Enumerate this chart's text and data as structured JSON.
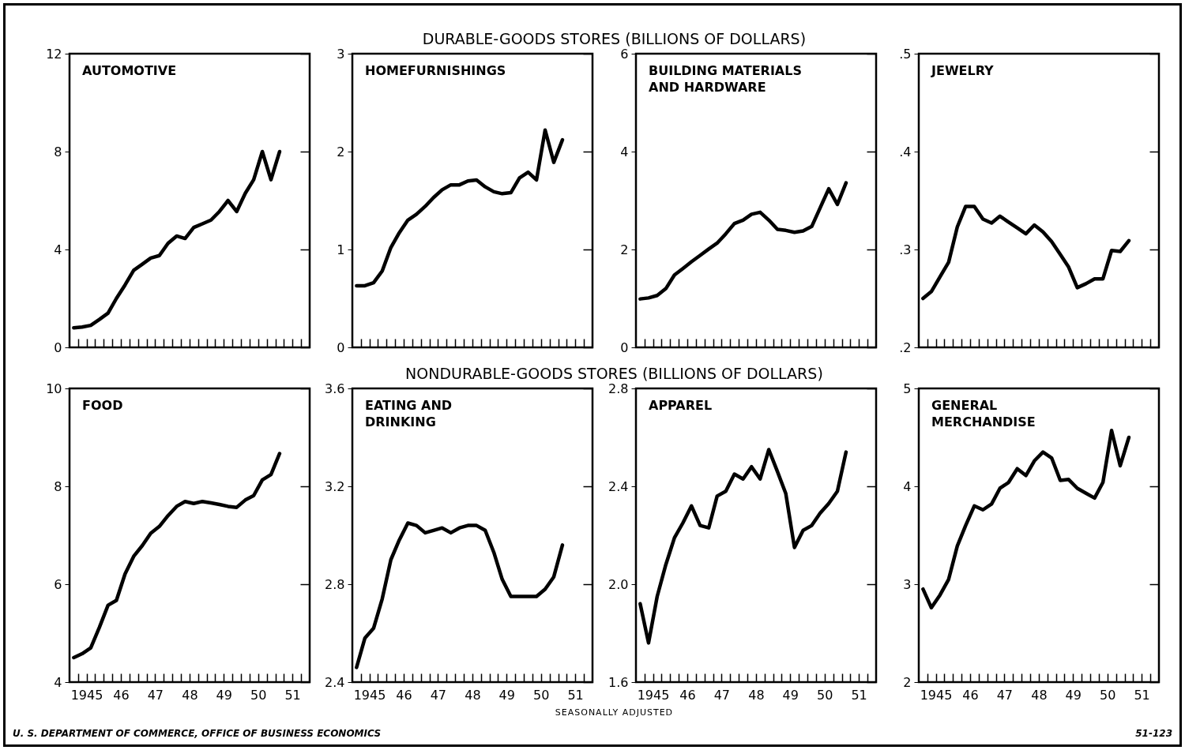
{
  "chart_data": [
    {
      "type": "line",
      "title": "AUTOMOTIVE",
      "annotations": [
        "DURABLE-GOODS STORES (BILLIONS OF DOLLARS)"
      ],
      "color": "#000000",
      "x": [
        "1945-02-15",
        "1945-05-15",
        "1945-08-15",
        "1945-11-15",
        "1946-02-15",
        "1946-05-15",
        "1946-08-15",
        "1946-11-15",
        "1947-02-15",
        "1947-05-15",
        "1947-08-15",
        "1947-11-15",
        "1948-02-15",
        "1948-05-15",
        "1948-08-15",
        "1948-11-15",
        "1949-02-15",
        "1949-05-15",
        "1949-08-15",
        "1949-11-15",
        "1950-02-15",
        "1950-05-15",
        "1950-08-15",
        "1950-11-15",
        "1951-02-15"
      ],
      "values": [
        0.8,
        0.83,
        0.9,
        1.14,
        1.4,
        2.0,
        2.55,
        3.15,
        3.4,
        3.65,
        3.75,
        4.25,
        4.55,
        4.45,
        4.9,
        5.05,
        5.2,
        5.55,
        6.0,
        5.55,
        6.3,
        6.85,
        8.0,
        6.85,
        8.0
      ],
      "xlim": [
        "1945-01-01",
        "1952-01-01"
      ],
      "xticks": [
        {
          "value": "1945-04-01",
          "label": null
        },
        {
          "value": "1945-07-01",
          "label": null
        },
        {
          "value": "1945-10-01",
          "label": null
        },
        {
          "value": "1946-01-01",
          "label": null
        },
        {
          "value": "1946-04-01",
          "label": null
        },
        {
          "value": "1946-07-01",
          "label": null
        },
        {
          "value": "1946-10-01",
          "label": null
        },
        {
          "value": "1947-01-01",
          "label": null
        },
        {
          "value": "1947-04-01",
          "label": null
        },
        {
          "value": "1947-07-01",
          "label": null
        },
        {
          "value": "1947-10-01",
          "label": null
        },
        {
          "value": "1948-01-01",
          "label": null
        },
        {
          "value": "1948-04-01",
          "label": null
        },
        {
          "value": "1948-07-01",
          "label": null
        },
        {
          "value": "1948-10-01",
          "label": null
        },
        {
          "value": "1949-01-01",
          "label": null
        },
        {
          "value": "1949-04-01",
          "label": null
        },
        {
          "value": "1949-07-01",
          "label": null
        },
        {
          "value": "1949-10-01",
          "label": null
        },
        {
          "value": "1950-01-01",
          "label": null
        },
        {
          "value": "1950-04-01",
          "label": null
        },
        {
          "value": "1950-07-01",
          "label": null
        },
        {
          "value": "1950-10-01",
          "label": null
        },
        {
          "value": "1951-01-01",
          "label": null
        },
        {
          "value": "1951-04-01",
          "label": null
        },
        {
          "value": "1951-07-01",
          "label": null
        },
        {
          "value": "1951-10-01",
          "label": null
        }
      ],
      "ylim": [
        0,
        12
      ],
      "yticks": [
        0,
        4,
        8,
        12
      ],
      "tick_labels": "y"
    },
    {
      "type": "line",
      "title": "HOMEFURNISHINGS",
      "color": "#000000",
      "x": [
        "1945-02-15",
        "1945-05-15",
        "1945-08-15",
        "1945-11-15",
        "1946-02-15",
        "1946-05-15",
        "1946-08-15",
        "1946-11-15",
        "1947-02-15",
        "1947-05-15",
        "1947-08-15",
        "1947-11-15",
        "1948-02-15",
        "1948-05-15",
        "1948-08-15",
        "1948-11-15",
        "1949-02-15",
        "1949-05-15",
        "1949-08-15",
        "1949-11-15",
        "1950-02-15",
        "1950-05-15",
        "1950-08-15",
        "1950-11-15",
        "1951-02-15"
      ],
      "values": [
        0.63,
        0.63,
        0.66,
        0.78,
        1.02,
        1.17,
        1.3,
        1.36,
        1.44,
        1.53,
        1.61,
        1.66,
        1.66,
        1.7,
        1.71,
        1.64,
        1.59,
        1.57,
        1.58,
        1.73,
        1.79,
        1.71,
        2.22,
        1.89,
        2.12
      ],
      "xlim": [
        "1945-01-01",
        "1952-01-01"
      ],
      "xticks": [
        {
          "value": "1945-04-01",
          "label": null
        },
        {
          "value": "1945-07-01",
          "label": null
        },
        {
          "value": "1945-10-01",
          "label": null
        },
        {
          "value": "1946-01-01",
          "label": null
        },
        {
          "value": "1946-04-01",
          "label": null
        },
        {
          "value": "1946-07-01",
          "label": null
        },
        {
          "value": "1946-10-01",
          "label": null
        },
        {
          "value": "1947-01-01",
          "label": null
        },
        {
          "value": "1947-04-01",
          "label": null
        },
        {
          "value": "1947-07-01",
          "label": null
        },
        {
          "value": "1947-10-01",
          "label": null
        },
        {
          "value": "1948-01-01",
          "label": null
        },
        {
          "value": "1948-04-01",
          "label": null
        },
        {
          "value": "1948-07-01",
          "label": null
        },
        {
          "value": "1948-10-01",
          "label": null
        },
        {
          "value": "1949-01-01",
          "label": null
        },
        {
          "value": "1949-04-01",
          "label": null
        },
        {
          "value": "1949-07-01",
          "label": null
        },
        {
          "value": "1949-10-01",
          "label": null
        },
        {
          "value": "1950-01-01",
          "label": null
        },
        {
          "value": "1950-04-01",
          "label": null
        },
        {
          "value": "1950-07-01",
          "label": null
        },
        {
          "value": "1950-10-01",
          "label": null
        },
        {
          "value": "1951-01-01",
          "label": null
        },
        {
          "value": "1951-04-01",
          "label": null
        },
        {
          "value": "1951-07-01",
          "label": null
        },
        {
          "value": "1951-10-01",
          "label": null
        }
      ],
      "ylim": [
        0,
        3
      ],
      "yticks": [
        0,
        1,
        2,
        3
      ],
      "tick_labels": "y"
    },
    {
      "type": "line",
      "title": "BUILDING MATERIALS\nAND HARDWARE",
      "color": "#000000",
      "x": [
        "1945-02-15",
        "1945-05-15",
        "1945-08-15",
        "1945-11-15",
        "1946-02-15",
        "1946-05-15",
        "1946-08-15",
        "1946-11-15",
        "1947-02-15",
        "1947-05-15",
        "1947-08-15",
        "1947-11-15",
        "1948-02-15",
        "1948-05-15",
        "1948-08-15",
        "1948-11-15",
        "1949-02-15",
        "1949-05-15",
        "1949-08-15",
        "1949-11-15",
        "1950-02-15",
        "1950-05-15",
        "1950-08-15",
        "1950-11-15",
        "1951-02-15"
      ],
      "values": [
        0.99,
        1.01,
        1.06,
        1.2,
        1.48,
        1.61,
        1.75,
        1.88,
        2.01,
        2.13,
        2.32,
        2.53,
        2.6,
        2.72,
        2.76,
        2.6,
        2.41,
        2.39,
        2.35,
        2.38,
        2.47,
        2.85,
        3.24,
        2.92,
        3.36
      ],
      "xlim": [
        "1945-01-01",
        "1952-01-01"
      ],
      "xticks": [
        {
          "value": "1945-04-01",
          "label": null
        },
        {
          "value": "1945-07-01",
          "label": null
        },
        {
          "value": "1945-10-01",
          "label": null
        },
        {
          "value": "1946-01-01",
          "label": null
        },
        {
          "value": "1946-04-01",
          "label": null
        },
        {
          "value": "1946-07-01",
          "label": null
        },
        {
          "value": "1946-10-01",
          "label": null
        },
        {
          "value": "1947-01-01",
          "label": null
        },
        {
          "value": "1947-04-01",
          "label": null
        },
        {
          "value": "1947-07-01",
          "label": null
        },
        {
          "value": "1947-10-01",
          "label": null
        },
        {
          "value": "1948-01-01",
          "label": null
        },
        {
          "value": "1948-04-01",
          "label": null
        },
        {
          "value": "1948-07-01",
          "label": null
        },
        {
          "value": "1948-10-01",
          "label": null
        },
        {
          "value": "1949-01-01",
          "label": null
        },
        {
          "value": "1949-04-01",
          "label": null
        },
        {
          "value": "1949-07-01",
          "label": null
        },
        {
          "value": "1949-10-01",
          "label": null
        },
        {
          "value": "1950-01-01",
          "label": null
        },
        {
          "value": "1950-04-01",
          "label": null
        },
        {
          "value": "1950-07-01",
          "label": null
        },
        {
          "value": "1950-10-01",
          "label": null
        },
        {
          "value": "1951-01-01",
          "label": null
        },
        {
          "value": "1951-04-01",
          "label": null
        },
        {
          "value": "1951-07-01",
          "label": null
        },
        {
          "value": "1951-10-01",
          "label": null
        }
      ],
      "ylim": [
        0,
        6
      ],
      "yticks": [
        0,
        2,
        4,
        6
      ],
      "tick_labels": "y"
    },
    {
      "type": "line",
      "title": "JEWELRY",
      "color": "#000000",
      "x": [
        "1945-02-15",
        "1945-05-15",
        "1945-08-15",
        "1945-11-15",
        "1946-02-15",
        "1946-05-15",
        "1946-08-15",
        "1946-11-15",
        "1947-02-15",
        "1947-05-15",
        "1947-08-15",
        "1947-11-15",
        "1948-02-15",
        "1948-05-15",
        "1948-08-15",
        "1948-11-15",
        "1949-02-15",
        "1949-05-15",
        "1949-08-15",
        "1949-11-15",
        "1950-02-15",
        "1950-05-15",
        "1950-08-15",
        "1950-11-15",
        "1951-02-15"
      ],
      "values": [
        0.25,
        0.257,
        0.272,
        0.287,
        0.323,
        0.344,
        0.344,
        0.331,
        0.327,
        0.334,
        0.328,
        0.322,
        0.316,
        0.325,
        0.318,
        0.308,
        0.295,
        0.282,
        0.261,
        0.265,
        0.27,
        0.27,
        0.299,
        0.298,
        0.309
      ],
      "xlim": [
        "1945-01-01",
        "1952-01-01"
      ],
      "xticks": [
        {
          "value": "1945-04-01",
          "label": null
        },
        {
          "value": "1945-07-01",
          "label": null
        },
        {
          "value": "1945-10-01",
          "label": null
        },
        {
          "value": "1946-01-01",
          "label": null
        },
        {
          "value": "1946-04-01",
          "label": null
        },
        {
          "value": "1946-07-01",
          "label": null
        },
        {
          "value": "1946-10-01",
          "label": null
        },
        {
          "value": "1947-01-01",
          "label": null
        },
        {
          "value": "1947-04-01",
          "label": null
        },
        {
          "value": "1947-07-01",
          "label": null
        },
        {
          "value": "1947-10-01",
          "label": null
        },
        {
          "value": "1948-01-01",
          "label": null
        },
        {
          "value": "1948-04-01",
          "label": null
        },
        {
          "value": "1948-07-01",
          "label": null
        },
        {
          "value": "1948-10-01",
          "label": null
        },
        {
          "value": "1949-01-01",
          "label": null
        },
        {
          "value": "1949-04-01",
          "label": null
        },
        {
          "value": "1949-07-01",
          "label": null
        },
        {
          "value": "1949-10-01",
          "label": null
        },
        {
          "value": "1950-01-01",
          "label": null
        },
        {
          "value": "1950-04-01",
          "label": null
        },
        {
          "value": "1950-07-01",
          "label": null
        },
        {
          "value": "1950-10-01",
          "label": null
        },
        {
          "value": "1951-01-01",
          "label": null
        },
        {
          "value": "1951-04-01",
          "label": null
        },
        {
          "value": "1951-07-01",
          "label": null
        },
        {
          "value": "1951-10-01",
          "label": null
        }
      ],
      "ylim": [
        0.2,
        0.5
      ],
      "yticks": [
        {
          "value": 0.2,
          "label": ".2"
        },
        {
          "value": 0.3,
          "label": ".3"
        },
        {
          "value": 0.4,
          "label": ".4"
        },
        {
          "value": 0.5,
          "label": ".5"
        }
      ],
      "tick_labels": "y"
    },
    {
      "type": "line",
      "title": "FOOD",
      "annotations": [
        "NONDURABLE-GOODS STORES (BILLIONS OF DOLLARS)",
        "SEASONALLY ADJUSTED",
        "U. S. DEPARTMENT OF COMMERCE, OFFICE OF BUSINESS ECONOMICS",
        "51-123"
      ],
      "color": "#000000",
      "x": [
        "1945-02-15",
        "1945-05-15",
        "1945-08-15",
        "1945-11-15",
        "1946-02-15",
        "1946-05-15",
        "1946-08-15",
        "1946-11-15",
        "1947-02-15",
        "1947-05-15",
        "1947-08-15",
        "1947-11-15",
        "1948-02-15",
        "1948-05-15",
        "1948-08-15",
        "1948-11-15",
        "1949-02-15",
        "1949-05-15",
        "1949-08-15",
        "1949-11-15",
        "1950-02-15",
        "1950-05-15",
        "1950-08-15",
        "1950-11-15",
        "1951-02-15"
      ],
      "values": [
        4.5,
        4.58,
        4.7,
        5.12,
        5.57,
        5.67,
        6.21,
        6.57,
        6.79,
        7.04,
        7.18,
        7.4,
        7.59,
        7.69,
        7.65,
        7.69,
        7.66,
        7.63,
        7.59,
        7.57,
        7.72,
        7.81,
        8.13,
        8.24,
        8.67
      ],
      "xlim": [
        "1945-01-01",
        "1952-01-01"
      ],
      "xticks": [
        {
          "value": "1945-04-01",
          "label": null
        },
        {
          "value": "1945-07-01",
          "label": "1945"
        },
        {
          "value": "1945-10-01",
          "label": null
        },
        {
          "value": "1946-01-01",
          "label": null
        },
        {
          "value": "1946-04-01",
          "label": null
        },
        {
          "value": "1946-07-01",
          "label": "46"
        },
        {
          "value": "1946-10-01",
          "label": null
        },
        {
          "value": "1947-01-01",
          "label": null
        },
        {
          "value": "1947-04-01",
          "label": null
        },
        {
          "value": "1947-07-01",
          "label": "47"
        },
        {
          "value": "1947-10-01",
          "label": null
        },
        {
          "value": "1948-01-01",
          "label": null
        },
        {
          "value": "1948-04-01",
          "label": null
        },
        {
          "value": "1948-07-01",
          "label": "48"
        },
        {
          "value": "1948-10-01",
          "label": null
        },
        {
          "value": "1949-01-01",
          "label": null
        },
        {
          "value": "1949-04-01",
          "label": null
        },
        {
          "value": "1949-07-01",
          "label": "49"
        },
        {
          "value": "1949-10-01",
          "label": null
        },
        {
          "value": "1950-01-01",
          "label": null
        },
        {
          "value": "1950-04-01",
          "label": null
        },
        {
          "value": "1950-07-01",
          "label": "50"
        },
        {
          "value": "1950-10-01",
          "label": null
        },
        {
          "value": "1951-01-01",
          "label": null
        },
        {
          "value": "1951-04-01",
          "label": null
        },
        {
          "value": "1951-07-01",
          "label": "51"
        },
        {
          "value": "1951-10-01",
          "label": null
        }
      ],
      "ylim": [
        4,
        10
      ],
      "yticks": [
        4,
        6,
        8,
        10
      ]
    },
    {
      "type": "line",
      "title": "EATING AND\nDRINKING",
      "color": "#000000",
      "x": [
        "1945-02-15",
        "1945-05-15",
        "1945-08-15",
        "1945-11-15",
        "1946-02-15",
        "1946-05-15",
        "1946-08-15",
        "1946-11-15",
        "1947-02-15",
        "1947-05-15",
        "1947-08-15",
        "1947-11-15",
        "1948-02-15",
        "1948-05-15",
        "1948-08-15",
        "1948-11-15",
        "1949-02-15",
        "1949-05-15",
        "1949-08-15",
        "1949-11-15",
        "1950-02-15",
        "1950-05-15",
        "1950-08-15",
        "1950-11-15",
        "1951-02-15"
      ],
      "values": [
        2.46,
        2.58,
        2.62,
        2.74,
        2.9,
        2.98,
        3.05,
        3.04,
        3.01,
        3.02,
        3.03,
        3.01,
        3.03,
        3.04,
        3.04,
        3.02,
        2.93,
        2.82,
        2.75,
        2.75,
        2.75,
        2.75,
        2.78,
        2.83,
        2.96
      ],
      "xlim": [
        "1945-01-01",
        "1952-01-01"
      ],
      "xticks": [
        {
          "value": "1945-04-01",
          "label": null
        },
        {
          "value": "1945-07-01",
          "label": "1945"
        },
        {
          "value": "1945-10-01",
          "label": null
        },
        {
          "value": "1946-01-01",
          "label": null
        },
        {
          "value": "1946-04-01",
          "label": null
        },
        {
          "value": "1946-07-01",
          "label": "46"
        },
        {
          "value": "1946-10-01",
          "label": null
        },
        {
          "value": "1947-01-01",
          "label": null
        },
        {
          "value": "1947-04-01",
          "label": null
        },
        {
          "value": "1947-07-01",
          "label": "47"
        },
        {
          "value": "1947-10-01",
          "label": null
        },
        {
          "value": "1948-01-01",
          "label": null
        },
        {
          "value": "1948-04-01",
          "label": null
        },
        {
          "value": "1948-07-01",
          "label": "48"
        },
        {
          "value": "1948-10-01",
          "label": null
        },
        {
          "value": "1949-01-01",
          "label": null
        },
        {
          "value": "1949-04-01",
          "label": null
        },
        {
          "value": "1949-07-01",
          "label": "49"
        },
        {
          "value": "1949-10-01",
          "label": null
        },
        {
          "value": "1950-01-01",
          "label": null
        },
        {
          "value": "1950-04-01",
          "label": null
        },
        {
          "value": "1950-07-01",
          "label": "50"
        },
        {
          "value": "1950-10-01",
          "label": null
        },
        {
          "value": "1951-01-01",
          "label": null
        },
        {
          "value": "1951-04-01",
          "label": null
        },
        {
          "value": "1951-07-01",
          "label": "51"
        },
        {
          "value": "1951-10-01",
          "label": null
        }
      ],
      "ylim": [
        2.4,
        3.6
      ],
      "yticks": [
        2.4,
        2.8,
        3.2,
        3.6
      ]
    },
    {
      "type": "line",
      "title": "APPAREL",
      "color": "#000000",
      "x": [
        "1945-02-15",
        "1945-05-15",
        "1945-08-15",
        "1945-11-15",
        "1946-02-15",
        "1946-05-15",
        "1946-08-15",
        "1946-11-15",
        "1947-02-15",
        "1947-05-15",
        "1947-08-15",
        "1947-11-15",
        "1948-02-15",
        "1948-05-15",
        "1948-08-15",
        "1948-11-15",
        "1949-02-15",
        "1949-05-15",
        "1949-08-15",
        "1949-11-15",
        "1950-02-15",
        "1950-05-15",
        "1950-08-15",
        "1950-11-15",
        "1951-02-15"
      ],
      "values": [
        1.92,
        1.76,
        1.95,
        2.08,
        2.19,
        2.25,
        2.32,
        2.24,
        2.23,
        2.36,
        2.38,
        2.45,
        2.43,
        2.48,
        2.43,
        2.55,
        2.46,
        2.37,
        2.15,
        2.22,
        2.24,
        2.29,
        2.33,
        2.38,
        2.54
      ],
      "xlim": [
        "1945-01-01",
        "1952-01-01"
      ],
      "xticks": [
        {
          "value": "1945-04-01",
          "label": null
        },
        {
          "value": "1945-07-01",
          "label": "1945"
        },
        {
          "value": "1945-10-01",
          "label": null
        },
        {
          "value": "1946-01-01",
          "label": null
        },
        {
          "value": "1946-04-01",
          "label": null
        },
        {
          "value": "1946-07-01",
          "label": "46"
        },
        {
          "value": "1946-10-01",
          "label": null
        },
        {
          "value": "1947-01-01",
          "label": null
        },
        {
          "value": "1947-04-01",
          "label": null
        },
        {
          "value": "1947-07-01",
          "label": "47"
        },
        {
          "value": "1947-10-01",
          "label": null
        },
        {
          "value": "1948-01-01",
          "label": null
        },
        {
          "value": "1948-04-01",
          "label": null
        },
        {
          "value": "1948-07-01",
          "label": "48"
        },
        {
          "value": "1948-10-01",
          "label": null
        },
        {
          "value": "1949-01-01",
          "label": null
        },
        {
          "value": "1949-04-01",
          "label": null
        },
        {
          "value": "1949-07-01",
          "label": "49"
        },
        {
          "value": "1949-10-01",
          "label": null
        },
        {
          "value": "1950-01-01",
          "label": null
        },
        {
          "value": "1950-04-01",
          "label": null
        },
        {
          "value": "1950-07-01",
          "label": "50"
        },
        {
          "value": "1950-10-01",
          "label": null
        },
        {
          "value": "1951-01-01",
          "label": null
        },
        {
          "value": "1951-04-01",
          "label": null
        },
        {
          "value": "1951-07-01",
          "label": "51"
        },
        {
          "value": "1951-10-01",
          "label": null
        }
      ],
      "ylim": [
        1.6,
        2.8
      ],
      "yticks": [
        1.6,
        {
          "value": 2,
          "label": "2.0"
        },
        2.4,
        2.8
      ]
    },
    {
      "type": "line",
      "title": "GENERAL\nMERCHANDISE",
      "color": "#000000",
      "x": [
        "1945-02-15",
        "1945-05-15",
        "1945-08-15",
        "1945-11-15",
        "1946-02-15",
        "1946-05-15",
        "1946-08-15",
        "1946-11-15",
        "1947-02-15",
        "1947-05-15",
        "1947-08-15",
        "1947-11-15",
        "1948-02-15",
        "1948-05-15",
        "1948-08-15",
        "1948-11-15",
        "1949-02-15",
        "1949-05-15",
        "1949-08-15",
        "1949-11-15",
        "1950-02-15",
        "1950-05-15",
        "1950-08-15",
        "1950-11-15",
        "1951-02-15"
      ],
      "values": [
        2.95,
        2.76,
        2.89,
        3.05,
        3.39,
        3.6,
        3.8,
        3.76,
        3.82,
        3.98,
        4.04,
        4.18,
        4.11,
        4.26,
        4.35,
        4.29,
        4.06,
        4.07,
        3.98,
        3.93,
        3.88,
        4.04,
        4.57,
        4.21,
        4.5
      ],
      "xlim": [
        "1945-01-01",
        "1952-01-01"
      ],
      "xticks": [
        {
          "value": "1945-04-01",
          "label": null
        },
        {
          "value": "1945-07-01",
          "label": "1945"
        },
        {
          "value": "1945-10-01",
          "label": null
        },
        {
          "value": "1946-01-01",
          "label": null
        },
        {
          "value": "1946-04-01",
          "label": null
        },
        {
          "value": "1946-07-01",
          "label": "46"
        },
        {
          "value": "1946-10-01",
          "label": null
        },
        {
          "value": "1947-01-01",
          "label": null
        },
        {
          "value": "1947-04-01",
          "label": null
        },
        {
          "value": "1947-07-01",
          "label": "47"
        },
        {
          "value": "1947-10-01",
          "label": null
        },
        {
          "value": "1948-01-01",
          "label": null
        },
        {
          "value": "1948-04-01",
          "label": null
        },
        {
          "value": "1948-07-01",
          "label": "48"
        },
        {
          "value": "1948-10-01",
          "label": null
        },
        {
          "value": "1949-01-01",
          "label": null
        },
        {
          "value": "1949-04-01",
          "label": null
        },
        {
          "value": "1949-07-01",
          "label": "49"
        },
        {
          "value": "1949-10-01",
          "label": null
        },
        {
          "value": "1950-01-01",
          "label": null
        },
        {
          "value": "1950-04-01",
          "label": null
        },
        {
          "value": "1950-07-01",
          "label": "50"
        },
        {
          "value": "1950-10-01",
          "label": null
        },
        {
          "value": "1951-01-01",
          "label": null
        },
        {
          "value": "1951-04-01",
          "label": null
        },
        {
          "value": "1951-07-01",
          "label": "51"
        },
        {
          "value": "1951-10-01",
          "label": null
        }
      ],
      "ylim": [
        2,
        5
      ],
      "yticks": [
        2,
        3,
        4,
        5
      ]
    }
  ]
}
